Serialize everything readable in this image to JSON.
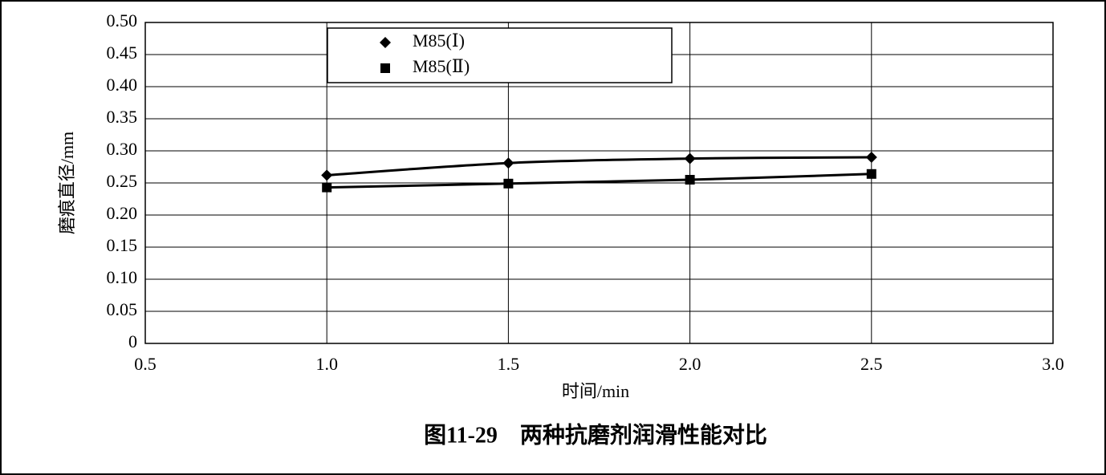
{
  "chart_data": {
    "type": "line",
    "title": "图11-29　两种抗磨剂润滑性能对比",
    "xlabel": "时间/min",
    "ylabel": "磨痕直径/mm",
    "x": [
      1.0,
      1.5,
      2.0,
      2.5
    ],
    "series": [
      {
        "name": "M85(Ⅰ)",
        "color": "#000000",
        "marker": "diamond",
        "values": [
          0.262,
          0.281,
          0.288,
          0.29
        ]
      },
      {
        "name": "M85(Ⅱ)",
        "color": "#000000",
        "marker": "square",
        "values": [
          0.243,
          0.249,
          0.255,
          0.264
        ]
      }
    ],
    "xlim": [
      0.5,
      3.0
    ],
    "xticks": [
      0.5,
      {
        "value": 1.0,
        "label": "1.0"
      },
      1.5,
      {
        "value": 2.0,
        "label": "2.0"
      },
      2.5,
      {
        "value": 3.0,
        "label": "3.0"
      }
    ],
    "ylim": [
      0,
      0.5
    ],
    "yticks": [
      0,
      0.05,
      {
        "value": 0.1,
        "label": "0.10"
      },
      0.15,
      {
        "value": 0.2,
        "label": "0.20"
      },
      0.25,
      {
        "value": 0.3,
        "label": "0.30"
      },
      0.35,
      {
        "value": 0.4,
        "label": "0.40"
      },
      0.45,
      {
        "value": 0.5,
        "label": "0.50"
      }
    ],
    "grid": true,
    "legend": "top-left"
  }
}
